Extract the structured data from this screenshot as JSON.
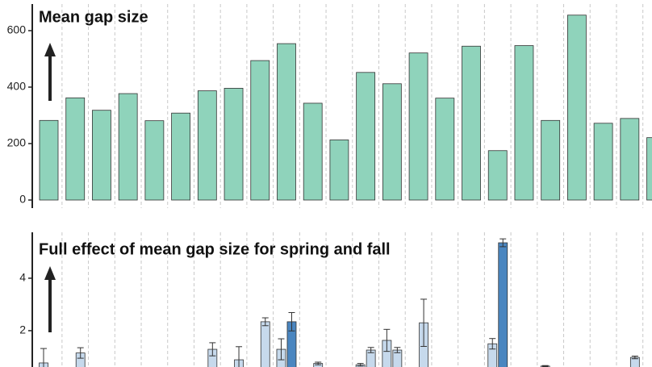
{
  "chart_data": [
    {
      "type": "bar",
      "title": "Mean gap size",
      "values": [
        282,
        362,
        318,
        377,
        281,
        308,
        387,
        396,
        494,
        554,
        343,
        213,
        452,
        412,
        521,
        361,
        545,
        175,
        547,
        282,
        655,
        272,
        289,
        221
      ],
      "color": "#8fd3bb",
      "ylim": [
        0,
        690
      ],
      "yticks": [
        0,
        200,
        400,
        600
      ],
      "grid": true
    },
    {
      "type": "grouped-bar",
      "title": "Full effect of mean gap size for spring and fall",
      "series": [
        {
          "color": "#c6d9ec",
          "values": [
            0.77,
            null,
            null,
            null,
            null,
            null,
            null,
            null,
            null,
            1.29,
            null,
            null,
            0.7,
            1.63,
            null,
            null,
            null,
            1.5,
            null,
            0.65,
            null,
            null,
            null,
            null
          ],
          "errors": [
            0.55,
            null,
            null,
            null,
            null,
            null,
            null,
            null,
            null,
            0.4,
            null,
            null,
            0.05,
            0.42,
            null,
            null,
            null,
            0.2,
            null,
            0.02,
            null,
            null,
            null,
            null
          ]
        },
        {
          "color": "#c6d9ec",
          "highlight_color": "#4a86c0",
          "highlight": [
            9,
            17
          ],
          "values": [
            null,
            1.15,
            null,
            null,
            null,
            null,
            1.29,
            0.89,
            2.34,
            2.34,
            0.75,
            null,
            1.26,
            1.26,
            2.3,
            null,
            null,
            5.35,
            null,
            null,
            null,
            null,
            0.98,
            null
          ],
          "errors": [
            null,
            0.2,
            null,
            null,
            null,
            null,
            0.25,
            0.5,
            0.15,
            0.35,
            0.05,
            null,
            0.1,
            0.1,
            0.9,
            null,
            null,
            0.15,
            null,
            null,
            null,
            null,
            0.05,
            null
          ]
        }
      ],
      "ylim": [
        0,
        5.75
      ],
      "yticks": [
        2,
        4
      ],
      "grid": true
    }
  ]
}
